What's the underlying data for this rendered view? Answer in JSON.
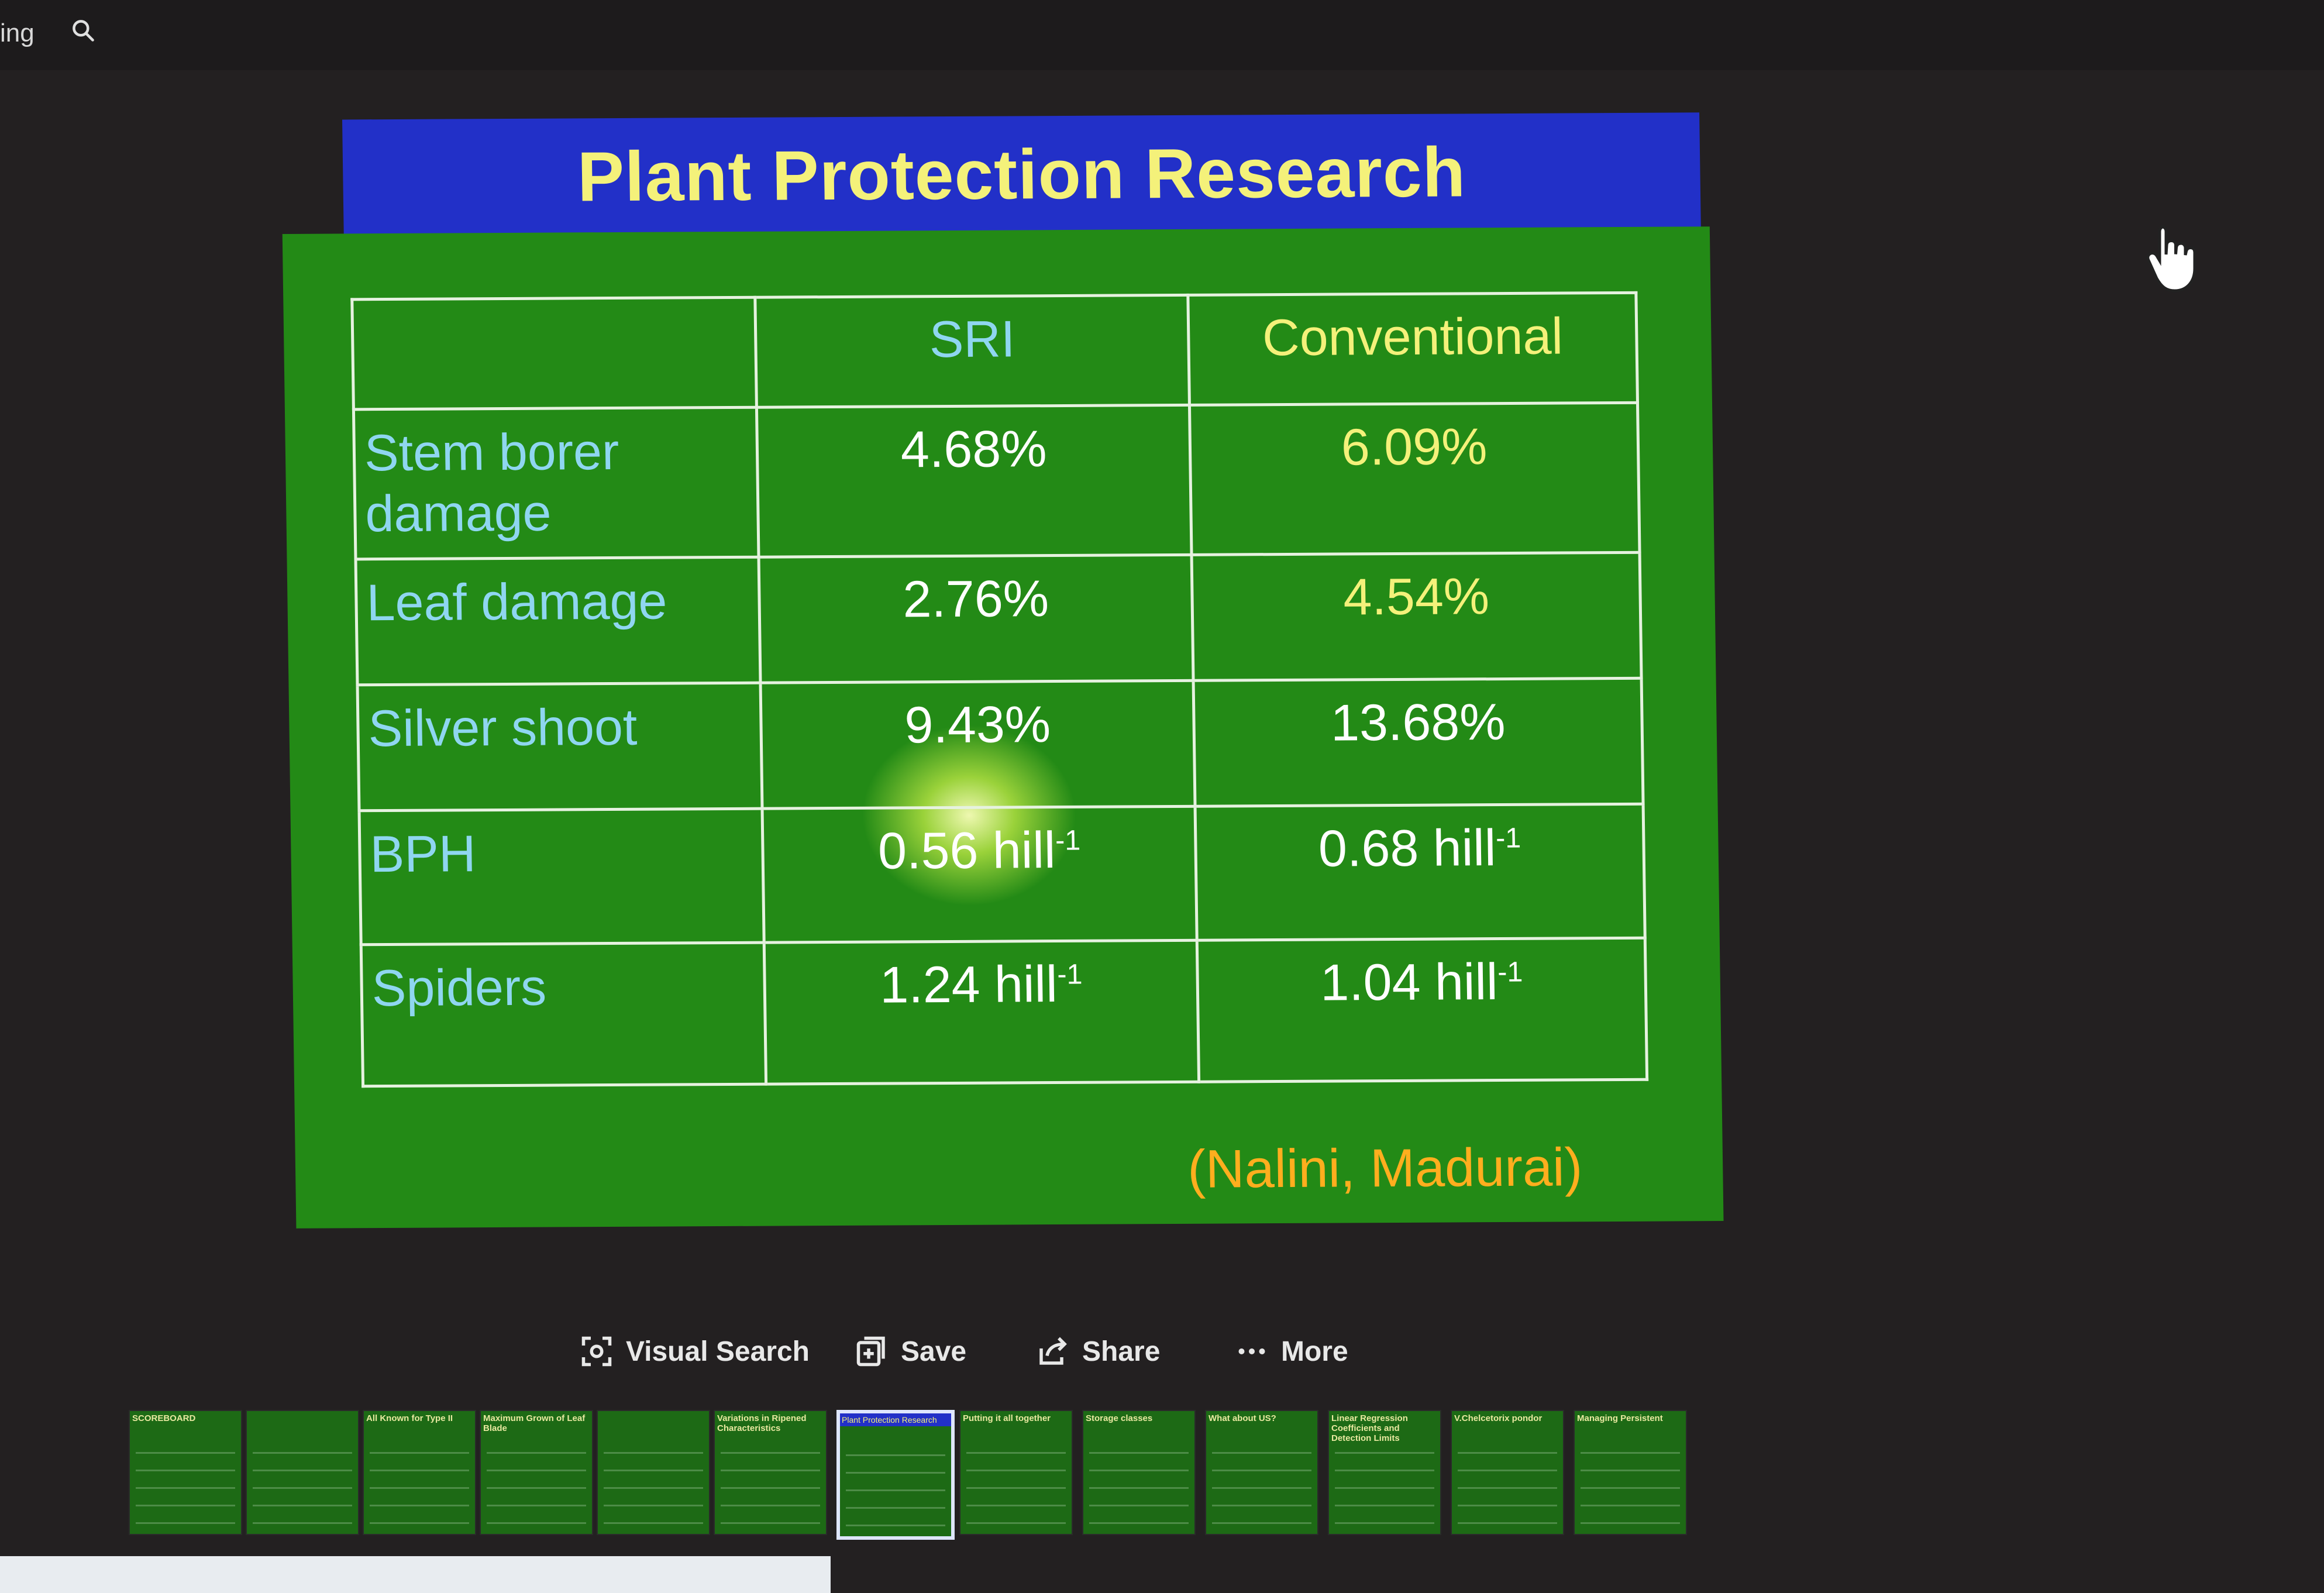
{
  "header": {
    "partial_text": "ing",
    "search_icon": "search-icon"
  },
  "slide": {
    "title": "Plant Protection Research",
    "table": {
      "columns": [
        "",
        "SRI",
        "Conventional"
      ],
      "rows": [
        {
          "label": "Stem borer damage",
          "sri": "4.68%",
          "conventional": "6.09%"
        },
        {
          "label": "Leaf damage",
          "sri": "2.76%",
          "conventional": "4.54%"
        },
        {
          "label": "Silver shoot",
          "sri": "9.43%",
          "conventional": "13.68%"
        },
        {
          "label": "BPH",
          "sri": "0.56 hill",
          "sri_sup": "-1",
          "conventional": "0.68 hill",
          "conventional_sup": "-1"
        },
        {
          "label": "Spiders",
          "sri": "1.24 hill",
          "sri_sup": "-1",
          "conventional": "1.04 hill",
          "conventional_sup": "-1"
        }
      ]
    },
    "citation": "(Nalini, Madurai)",
    "colors": {
      "header_bg": "#2230c8",
      "body_bg": "#238a16",
      "title": "#f4f17a",
      "citation": "#ffae1e"
    }
  },
  "actions": {
    "visual_search": "Visual Search",
    "save": "Save",
    "share": "Share",
    "more": "More"
  },
  "filmstrip": {
    "thumbnails": [
      {
        "title": "SCOREBOARD"
      },
      {
        "title": ""
      },
      {
        "title": "All Known for Type II"
      },
      {
        "title": "Maximum Grown of Leaf Blade"
      },
      {
        "title": ""
      },
      {
        "title": "Variations in Ripened Characteristics"
      },
      {
        "title": "Plant Protection Research",
        "active": true
      },
      {
        "title": "Putting it all together"
      },
      {
        "title": "Storage classes"
      },
      {
        "title": "What about US?"
      },
      {
        "title": "Linear Regression Coefficients and Detection Limits"
      },
      {
        "title": "V.Chelcetorix pondor"
      },
      {
        "title": "Managing Persistent"
      }
    ]
  }
}
